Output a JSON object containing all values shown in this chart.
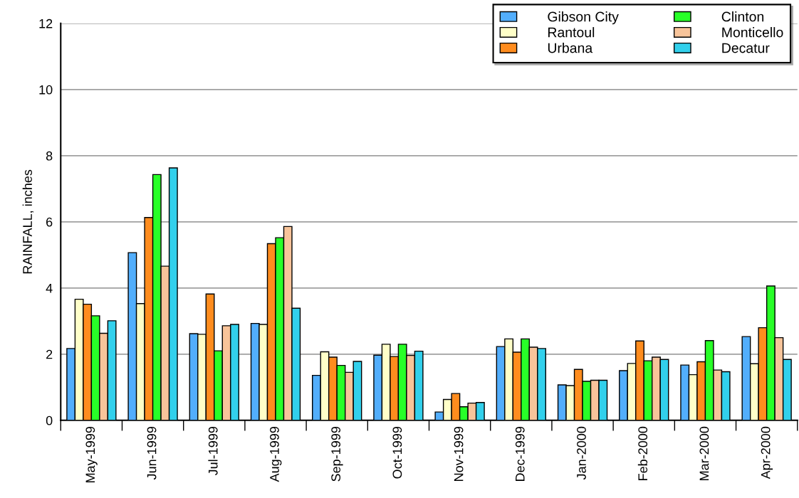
{
  "chart_data": {
    "type": "bar",
    "ylabel": "RAINFALL, inches",
    "categories": [
      "May-1999",
      "Jun-1999",
      "Jul-1999",
      "Aug-1999",
      "Sep-1999",
      "Oct-1999",
      "Nov-1999",
      "Dec-1999",
      "Jan-2000",
      "Feb-2000",
      "Mar-2000",
      "Apr-2000"
    ],
    "series": [
      {
        "name": "Gibson City",
        "color": "#52aefc",
        "values": [
          2.17,
          5.07,
          2.62,
          2.93,
          1.36,
          1.97,
          0.25,
          2.23,
          1.07,
          1.5,
          1.67,
          2.53
        ]
      },
      {
        "name": "Rantoul",
        "color": "#ffffc8",
        "values": [
          3.66,
          3.53,
          2.6,
          2.9,
          2.07,
          2.3,
          0.63,
          2.46,
          1.05,
          1.72,
          1.38,
          1.71
        ]
      },
      {
        "name": "Urbana",
        "color": "#ff8c1e",
        "values": [
          3.51,
          6.13,
          3.82,
          5.34,
          1.91,
          1.93,
          0.81,
          2.06,
          1.54,
          2.4,
          1.77,
          2.8
        ]
      },
      {
        "name": "Clinton",
        "color": "#28ff28",
        "values": [
          3.16,
          7.43,
          2.1,
          5.52,
          1.66,
          2.3,
          0.41,
          2.46,
          1.18,
          1.8,
          2.41,
          4.06
        ]
      },
      {
        "name": "Monticello",
        "color": "#f8c49a",
        "values": [
          2.63,
          4.66,
          2.86,
          5.86,
          1.45,
          1.96,
          0.52,
          2.21,
          1.21,
          1.91,
          1.52,
          2.5
        ]
      },
      {
        "name": "Decatur",
        "color": "#32d0ec",
        "values": [
          3.01,
          7.63,
          2.9,
          3.39,
          1.78,
          2.09,
          0.54,
          2.17,
          1.21,
          1.84,
          1.47,
          1.84
        ]
      }
    ],
    "ylim": [
      0,
      12
    ],
    "yticks": [
      0,
      2,
      4,
      6,
      8,
      10,
      12
    ],
    "grid": "y",
    "legend": "top right"
  }
}
